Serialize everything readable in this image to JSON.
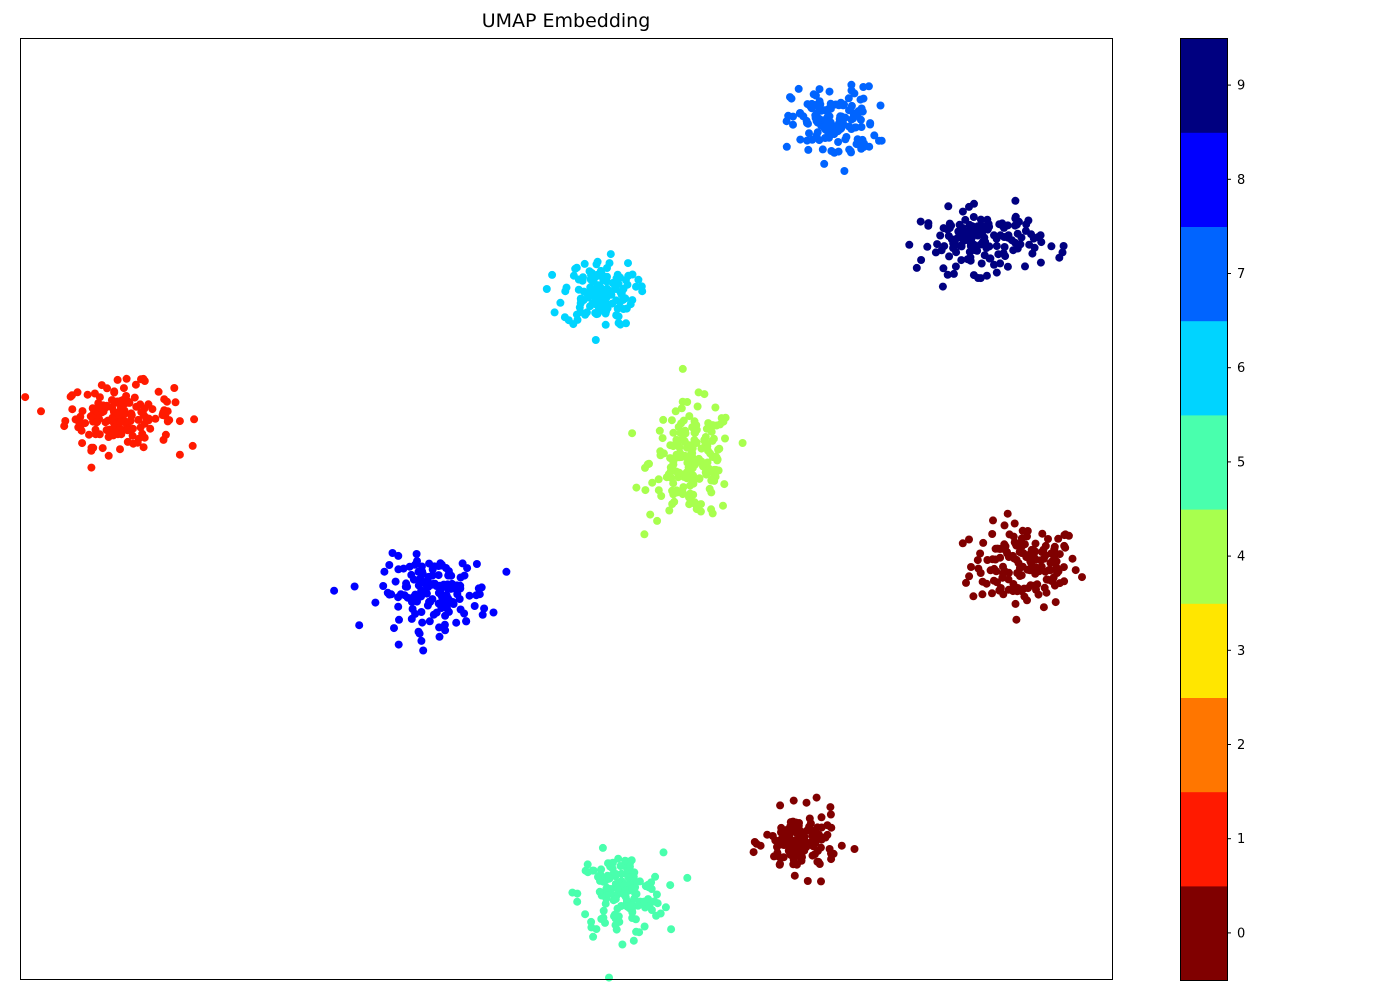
{
  "chart_data": {
    "type": "scatter",
    "title": "UMAP Embedding",
    "xlabel": "",
    "ylabel": "",
    "xticks": [],
    "yticks": [],
    "xlim": [
      0,
      100
    ],
    "ylim": [
      0,
      100
    ],
    "grid": false,
    "legend": "none",
    "colorbar": {
      "position": "right",
      "ticks": [
        "0",
        "1",
        "2",
        "3",
        "4",
        "5",
        "6",
        "7",
        "8",
        "9"
      ],
      "colors": [
        "#800000",
        "#ff1a00",
        "#ff7600",
        "#ffe600",
        "#a8ff4e",
        "#49ffad",
        "#00d4ff",
        "#0064ff",
        "#0000ff",
        "#000080"
      ]
    },
    "clusters": [
      {
        "label": "0",
        "center": [
          92,
          44
        ],
        "spread": [
          4.5,
          4
        ],
        "count": 160
      },
      {
        "label": "1",
        "center": [
          9,
          60
        ],
        "spread": [
          4.5,
          3
        ],
        "count": 160
      },
      {
        "label": "4",
        "center": [
          61.5,
          55
        ],
        "spread": [
          3.5,
          5.5
        ],
        "count": 180
      },
      {
        "label": "5",
        "center": [
          55,
          9
        ],
        "spread": [
          3.5,
          4
        ],
        "count": 150
      },
      {
        "label": "6",
        "center": [
          53,
          73
        ],
        "spread": [
          3,
          3.2
        ],
        "count": 140
      },
      {
        "label": "7",
        "center": [
          74.5,
          91
        ],
        "spread": [
          3.5,
          3.5
        ],
        "count": 140
      },
      {
        "label": "8",
        "center": [
          38,
          41
        ],
        "spread": [
          4.5,
          3.5
        ],
        "count": 150
      },
      {
        "label": "9",
        "center": [
          88,
          78.5
        ],
        "spread": [
          5,
          3
        ],
        "count": 150
      },
      {
        "label": "0",
        "center": [
          71.5,
          14.5
        ],
        "spread": [
          3,
          3
        ],
        "count": 130
      }
    ]
  }
}
